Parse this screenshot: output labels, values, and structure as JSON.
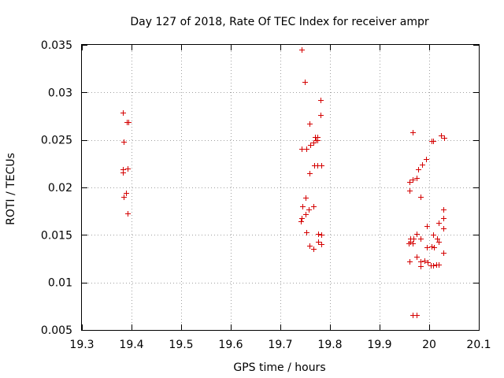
{
  "chart_data": {
    "type": "scatter",
    "title": "Day 127 of 2018, Rate Of TEC Index for receiver ampr",
    "xlabel": "GPS time / hours",
    "ylabel": "ROTI / TECUs",
    "xlim": [
      19.3,
      20.1
    ],
    "ylim": [
      0.005,
      0.035
    ],
    "grid": true,
    "legend": "none",
    "xticks": [
      19.3,
      19.4,
      19.5,
      19.6,
      19.7,
      19.8,
      19.9,
      20.0,
      20.1
    ],
    "xtick_labels": [
      "19.3",
      "19.4",
      "19.5",
      "19.6",
      "19.7",
      "19.8",
      "19.9",
      "20",
      "20.1"
    ],
    "yticks": [
      0.005,
      0.01,
      0.015,
      0.02,
      0.025,
      0.03,
      0.035
    ],
    "ytick_labels": [
      "0.005",
      "0.01",
      "0.015",
      "0.02",
      "0.025",
      "0.03",
      "0.035"
    ],
    "marker": "+",
    "color": "#d40000",
    "series": [
      {
        "name": "ROTI",
        "points": [
          [
            19.383,
            0.0279
          ],
          [
            19.384,
            0.0248
          ],
          [
            19.383,
            0.0219
          ],
          [
            19.383,
            0.0216
          ],
          [
            19.391,
            0.0269
          ],
          [
            19.393,
            0.0269
          ],
          [
            19.392,
            0.022
          ],
          [
            19.389,
            0.0194
          ],
          [
            19.384,
            0.019
          ],
          [
            19.392,
            0.0173
          ],
          [
            19.743,
            0.0345
          ],
          [
            19.75,
            0.0311
          ],
          [
            19.781,
            0.0292
          ],
          [
            19.781,
            0.0276
          ],
          [
            19.758,
            0.0267
          ],
          [
            19.77,
            0.0253
          ],
          [
            19.774,
            0.0253
          ],
          [
            19.771,
            0.025
          ],
          [
            19.774,
            0.025
          ],
          [
            19.766,
            0.0247
          ],
          [
            19.76,
            0.0245
          ],
          [
            19.753,
            0.0241
          ],
          [
            19.743,
            0.0241
          ],
          [
            19.768,
            0.0223
          ],
          [
            19.774,
            0.0223
          ],
          [
            19.782,
            0.0223
          ],
          [
            19.758,
            0.0215
          ],
          [
            19.751,
            0.0189
          ],
          [
            19.745,
            0.018
          ],
          [
            19.766,
            0.018
          ],
          [
            19.757,
            0.0177
          ],
          [
            19.751,
            0.0172
          ],
          [
            19.743,
            0.0168
          ],
          [
            19.742,
            0.0164
          ],
          [
            19.752,
            0.0153
          ],
          [
            19.776,
            0.0151
          ],
          [
            19.782,
            0.015
          ],
          [
            19.776,
            0.0143
          ],
          [
            19.782,
            0.014
          ],
          [
            19.758,
            0.0139
          ],
          [
            19.766,
            0.0135
          ],
          [
            19.966,
            0.0258
          ],
          [
            20.024,
            0.0255
          ],
          [
            20.03,
            0.0252
          ],
          [
            20.004,
            0.0249
          ],
          [
            20.008,
            0.0249
          ],
          [
            19.993,
            0.023
          ],
          [
            19.985,
            0.0224
          ],
          [
            19.977,
            0.0219
          ],
          [
            19.974,
            0.021
          ],
          [
            19.966,
            0.0208
          ],
          [
            19.961,
            0.0206
          ],
          [
            19.96,
            0.0197
          ],
          [
            19.982,
            0.019
          ],
          [
            20.028,
            0.0177
          ],
          [
            20.028,
            0.0168
          ],
          [
            20.019,
            0.0163
          ],
          [
            19.995,
            0.0159
          ],
          [
            20.029,
            0.0157
          ],
          [
            19.974,
            0.0151
          ],
          [
            20.008,
            0.015
          ],
          [
            19.962,
            0.0146
          ],
          [
            19.969,
            0.0146
          ],
          [
            19.982,
            0.0146
          ],
          [
            20.016,
            0.0146
          ],
          [
            19.962,
            0.0143
          ],
          [
            20.019,
            0.0143
          ],
          [
            19.959,
            0.0141
          ],
          [
            19.967,
            0.0141
          ],
          [
            20.004,
            0.0138
          ],
          [
            19.996,
            0.0137
          ],
          [
            20.01,
            0.0137
          ],
          [
            20.029,
            0.0131
          ],
          [
            19.975,
            0.0127
          ],
          [
            19.99,
            0.0123
          ],
          [
            19.96,
            0.0122
          ],
          [
            19.982,
            0.0122
          ],
          [
            19.997,
            0.0121
          ],
          [
            20.015,
            0.0119
          ],
          [
            20.019,
            0.0119
          ],
          [
            20.003,
            0.0118
          ],
          [
            20.008,
            0.0118
          ],
          [
            19.982,
            0.0117
          ],
          [
            19.967,
            0.0066
          ],
          [
            19.975,
            0.0066
          ]
        ]
      }
    ]
  }
}
